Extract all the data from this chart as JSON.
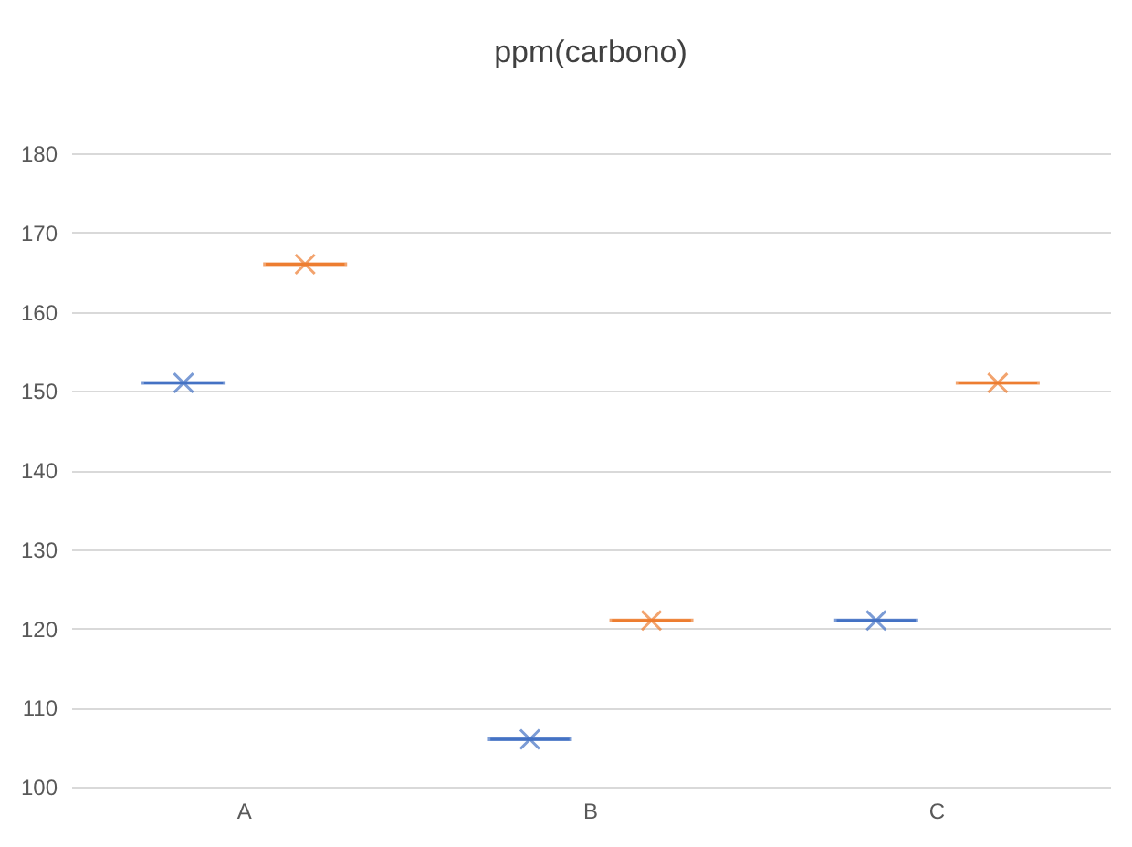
{
  "chart_data": {
    "type": "box",
    "title": "ppm(carbono)",
    "categories": [
      "A",
      "B",
      "C"
    ],
    "ylim": [
      100,
      180
    ],
    "yticks": [
      100,
      110,
      120,
      130,
      140,
      150,
      160,
      170,
      180
    ],
    "grid": "y",
    "legend": false,
    "marker": "cross",
    "series": [
      {
        "color": "#4472c4",
        "boxes": [
          {
            "low": 151,
            "q1": 151,
            "median": 151,
            "q3": 151,
            "high": 151,
            "mean": 151
          },
          {
            "low": 106,
            "q1": 106,
            "median": 106,
            "q3": 106,
            "high": 106,
            "mean": 106
          },
          {
            "low": 121,
            "q1": 121,
            "median": 121,
            "q3": 121,
            "high": 121,
            "mean": 121
          }
        ]
      },
      {
        "color": "#ed7d31",
        "boxes": [
          {
            "low": 166,
            "q1": 166,
            "median": 166,
            "q3": 166,
            "high": 166,
            "mean": 166
          },
          {
            "low": 121,
            "q1": 121,
            "median": 121,
            "q3": 121,
            "high": 121,
            "mean": 121
          },
          {
            "low": 151,
            "q1": 151,
            "median": 151,
            "q3": 151,
            "high": 151,
            "mean": 151
          }
        ]
      }
    ]
  }
}
